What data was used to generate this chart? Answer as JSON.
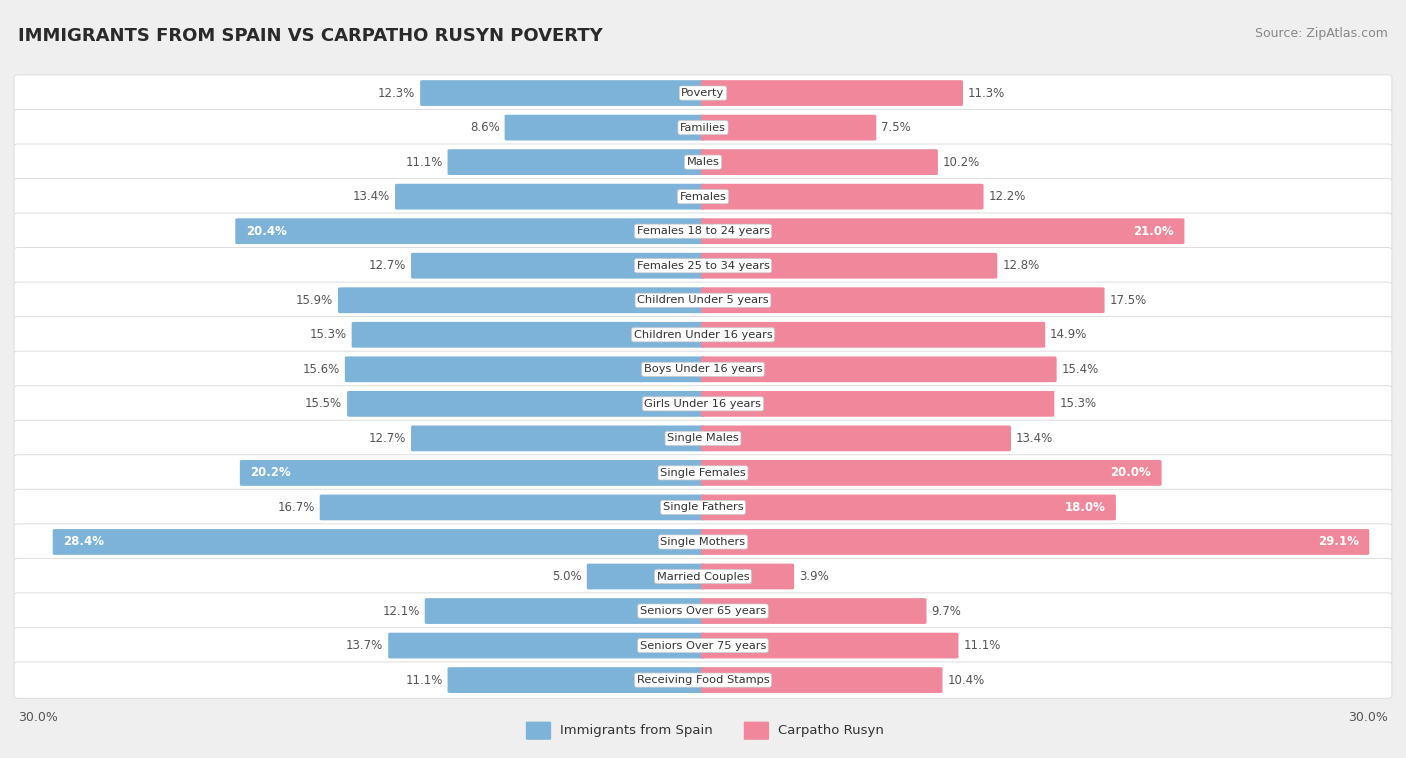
{
  "title": "IMMIGRANTS FROM SPAIN VS CARPATHO RUSYN POVERTY",
  "source": "Source: ZipAtlas.com",
  "categories": [
    "Poverty",
    "Families",
    "Males",
    "Females",
    "Females 18 to 24 years",
    "Females 25 to 34 years",
    "Children Under 5 years",
    "Children Under 16 years",
    "Boys Under 16 years",
    "Girls Under 16 years",
    "Single Males",
    "Single Females",
    "Single Fathers",
    "Single Mothers",
    "Married Couples",
    "Seniors Over 65 years",
    "Seniors Over 75 years",
    "Receiving Food Stamps"
  ],
  "spain_values": [
    12.3,
    8.6,
    11.1,
    13.4,
    20.4,
    12.7,
    15.9,
    15.3,
    15.6,
    15.5,
    12.7,
    20.2,
    16.7,
    28.4,
    5.0,
    12.1,
    13.7,
    11.1
  ],
  "rusyn_values": [
    11.3,
    7.5,
    10.2,
    12.2,
    21.0,
    12.8,
    17.5,
    14.9,
    15.4,
    15.3,
    13.4,
    20.0,
    18.0,
    29.1,
    3.9,
    9.7,
    11.1,
    10.4
  ],
  "spain_color": "#7db3d8",
  "rusyn_color": "#f0879a",
  "bg_color": "#efefef",
  "bar_row_color": "#ffffff",
  "text_dark": "#555555",
  "text_white": "#ffffff",
  "max_value": 30.0,
  "highlight_threshold": 18.0,
  "title_fontsize": 13.0,
  "label_fontsize": 8.5,
  "cat_fontsize": 8.2,
  "source_fontsize": 9.0,
  "axis_label_fontsize": 9.0,
  "legend_fontsize": 9.5
}
